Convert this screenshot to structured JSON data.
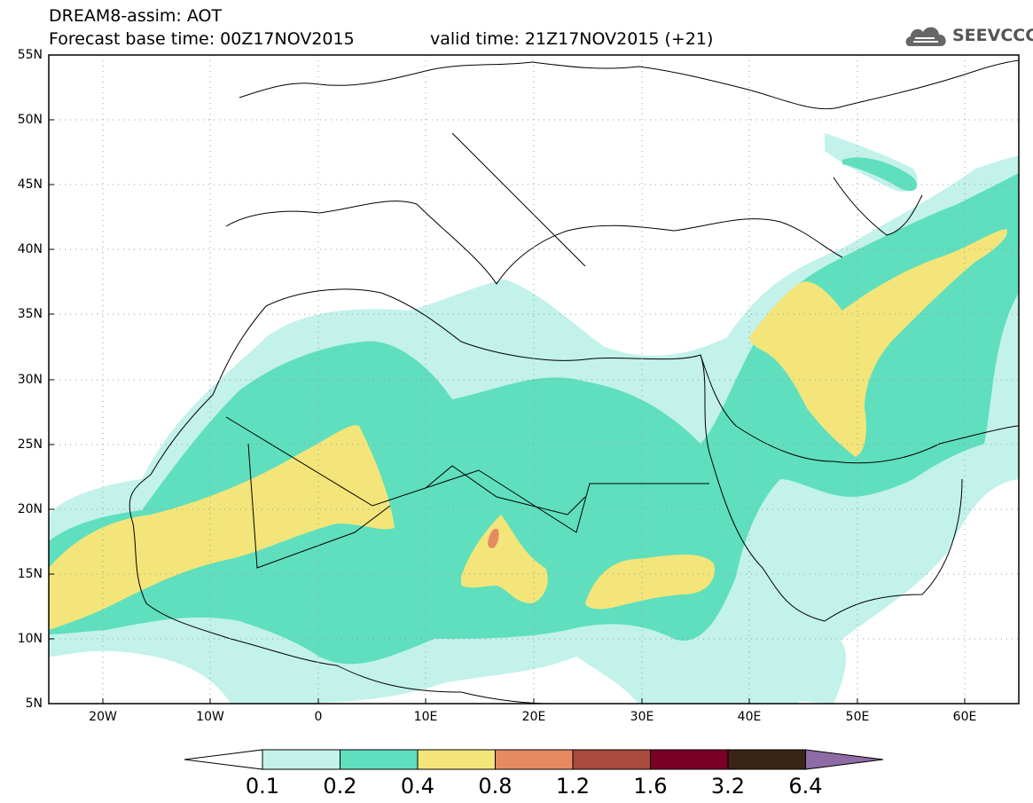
{
  "header": {
    "title": "DREAM8-assim: AOT",
    "base_time": "Forecast base time: 00Z17NOV2015",
    "valid_time": "valid time: 21Z17NOV2015 (+21)",
    "logo_text": "SEEVCCC",
    "logo_icon": "cloud-icon"
  },
  "map": {
    "lat_labels": [
      "55N",
      "50N",
      "45N",
      "40N",
      "35N",
      "30N",
      "25N",
      "20N",
      "15N",
      "10N",
      "5N"
    ],
    "lon_labels": [
      "20W",
      "10W",
      "0",
      "10E",
      "20E",
      "30E",
      "40E",
      "50E",
      "60E"
    ],
    "lat_range": [
      5,
      55
    ],
    "lon_range": [
      -25,
      65
    ]
  },
  "colorbar": {
    "labels": [
      "0.1",
      "0.2",
      "0.4",
      "0.8",
      "1.2",
      "1.6",
      "3.2",
      "6.4"
    ],
    "colors": [
      "#ffffff",
      "#c2f2ea",
      "#5fdfbd",
      "#f4e57a",
      "#e68a62",
      "#a84a3c",
      "#7a0026",
      "#3a2415",
      "#8f6ba6"
    ]
  },
  "legend_colors": {
    "level1": "#c2f2ea",
    "level2": "#5fdfbd",
    "level3": "#f4e57a",
    "level4": "#e68a62"
  }
}
